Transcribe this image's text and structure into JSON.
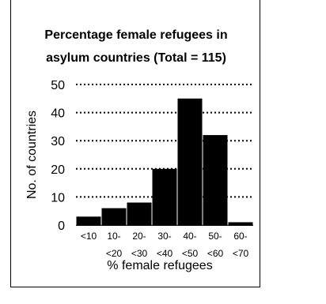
{
  "chart_data": {
    "type": "bar",
    "title_line1": "Percentage female refugees in",
    "title_line2": "asylum countries (Total = 115)",
    "xlabel": "% female refugees",
    "ylabel": "No. of countries",
    "ylim": [
      0,
      50
    ],
    "yticks": [
      0,
      10,
      20,
      30,
      40,
      50
    ],
    "grid": "dotted-horizontal",
    "categories": [
      [
        "<10",
        ""
      ],
      [
        "10-",
        "<20"
      ],
      [
        "20-",
        "<30"
      ],
      [
        "30-",
        "<40"
      ],
      [
        "40-",
        "<50"
      ],
      [
        "50-",
        "<60"
      ],
      [
        "60-",
        "<70"
      ]
    ],
    "values": [
      3,
      6,
      8,
      20,
      45,
      32,
      1
    ],
    "bar_color": "#000000"
  }
}
